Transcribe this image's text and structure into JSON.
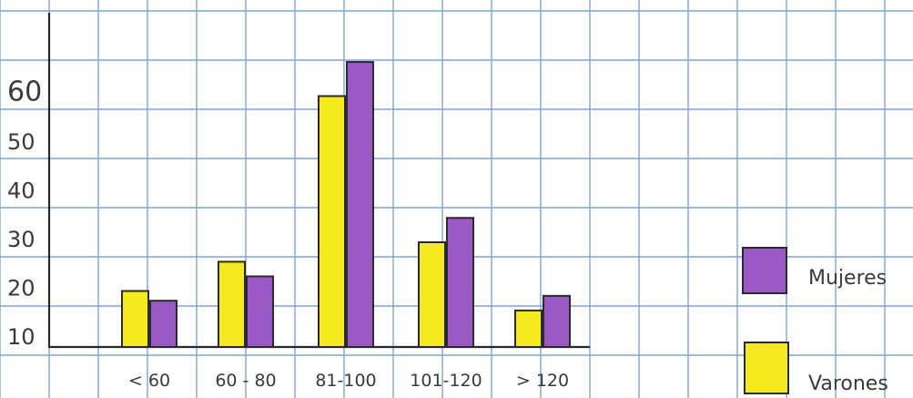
{
  "chart_data": {
    "type": "bar",
    "title": "",
    "xlabel": "",
    "ylabel": "",
    "categories": [
      "< 60",
      "60 - 80",
      "81-100",
      "101-120",
      "> 120"
    ],
    "y_ticks": [
      "10",
      "20",
      "30",
      "40",
      "50",
      "60"
    ],
    "ylim": [
      0,
      75
    ],
    "series": [
      {
        "name": "Varones",
        "color": "#f4ea1f",
        "values": [
          20,
          26,
          60,
          30,
          16
        ]
      },
      {
        "name": "Mujeres",
        "color": "#9b59c6",
        "values": [
          18,
          23,
          67,
          35,
          19
        ]
      }
    ],
    "legend": {
      "placement": "right",
      "items": [
        "Mujeres",
        "Varones"
      ]
    },
    "grid": true,
    "style": "hand-drawn on blue graph paper"
  }
}
